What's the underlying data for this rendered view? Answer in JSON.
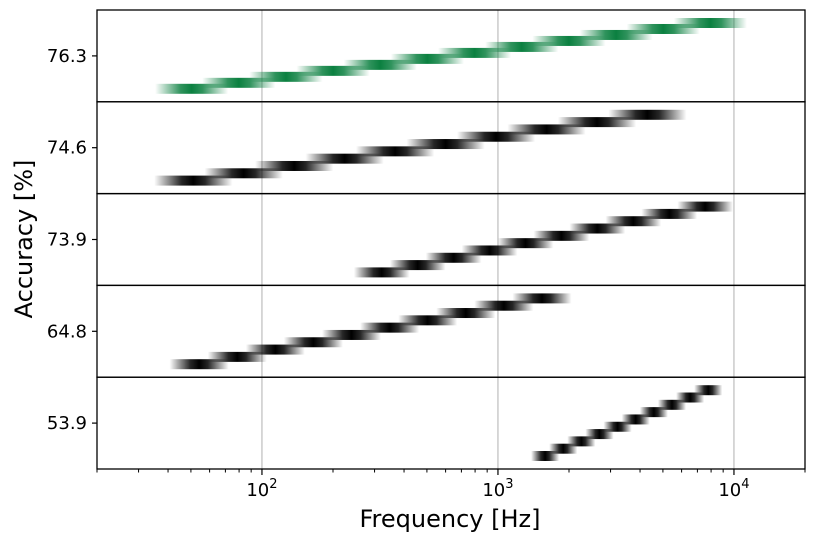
{
  "chart_data": {
    "type": "heatmap",
    "xlabel": "Frequency [Hz]",
    "ylabel": "Accuracy [%]",
    "x_scale": "log",
    "xlim": [
      20,
      20000
    ],
    "x_major_ticks": [
      100,
      1000,
      10000
    ],
    "grid": "vertical major gridlines",
    "panels": [
      {
        "accuracy_label": "76.3",
        "color": "#0b8040",
        "x_range_hz": [
          40,
          10000
        ],
        "bands": 12
      },
      {
        "accuracy_label": "74.6",
        "color": "#000000",
        "x_range_hz": [
          40,
          5500
        ],
        "bands": 10
      },
      {
        "accuracy_label": "73.9",
        "color": "#000000",
        "x_range_hz": [
          270,
          9000
        ],
        "bands": 10
      },
      {
        "accuracy_label": "64.8",
        "color": "#000000",
        "x_range_hz": [
          45,
          1850
        ],
        "bands": 10
      },
      {
        "accuracy_label": "53.9",
        "color": "#000000",
        "x_range_hz": [
          1450,
          8500
        ],
        "bands": 10
      }
    ]
  }
}
